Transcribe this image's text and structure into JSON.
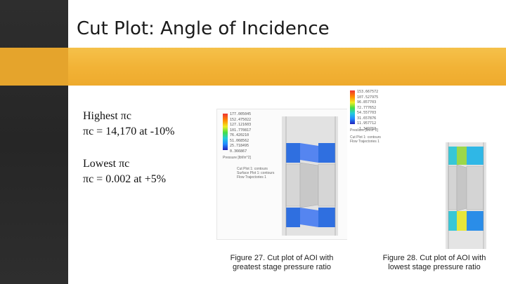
{
  "slide": {
    "title": "Cut Plot: Angle of Incidence",
    "highest_label": "Highest πc",
    "highest_value": "πc = 14,170 at -10%",
    "lowest_label": "Lowest πc",
    "lowest_value": "πc = 0.002 at +5%"
  },
  "figure27": {
    "caption_line1": "Figure 27. Cut plot of AOI with",
    "caption_line2": "greatest stage pressure ratio",
    "legend_values": [
      "177.005045",
      "152.475022",
      "127.121603",
      "101.770817",
      "76.420210",
      "51.068562",
      "25.718495",
      "0.366867"
    ],
    "legend_title": "Pressure [lbf/in^2]",
    "legend_note": [
      "Cut Plot 1: contours",
      "Surface Plot 1: contours",
      "Flow Trajectories 1"
    ]
  },
  "figure28": {
    "caption_line1": "Figure 28. Cut plot of AOI with",
    "caption_line2": "lowest stage pressure ratio",
    "legend_values": [
      "153.667572",
      "107.527975",
      "96.857703",
      "72.777652",
      "54.557703",
      "31.657876",
      "11.957712",
      "-1.349763"
    ],
    "legend_title": "Pressure [lbf/in^2]",
    "legend_note": [
      "Cut Plot 1: contours",
      "Flow Trajectories 1"
    ]
  },
  "colors": {
    "accent": "#f2b337",
    "left_band": "#2b2b2b",
    "background": "#ffffff"
  }
}
